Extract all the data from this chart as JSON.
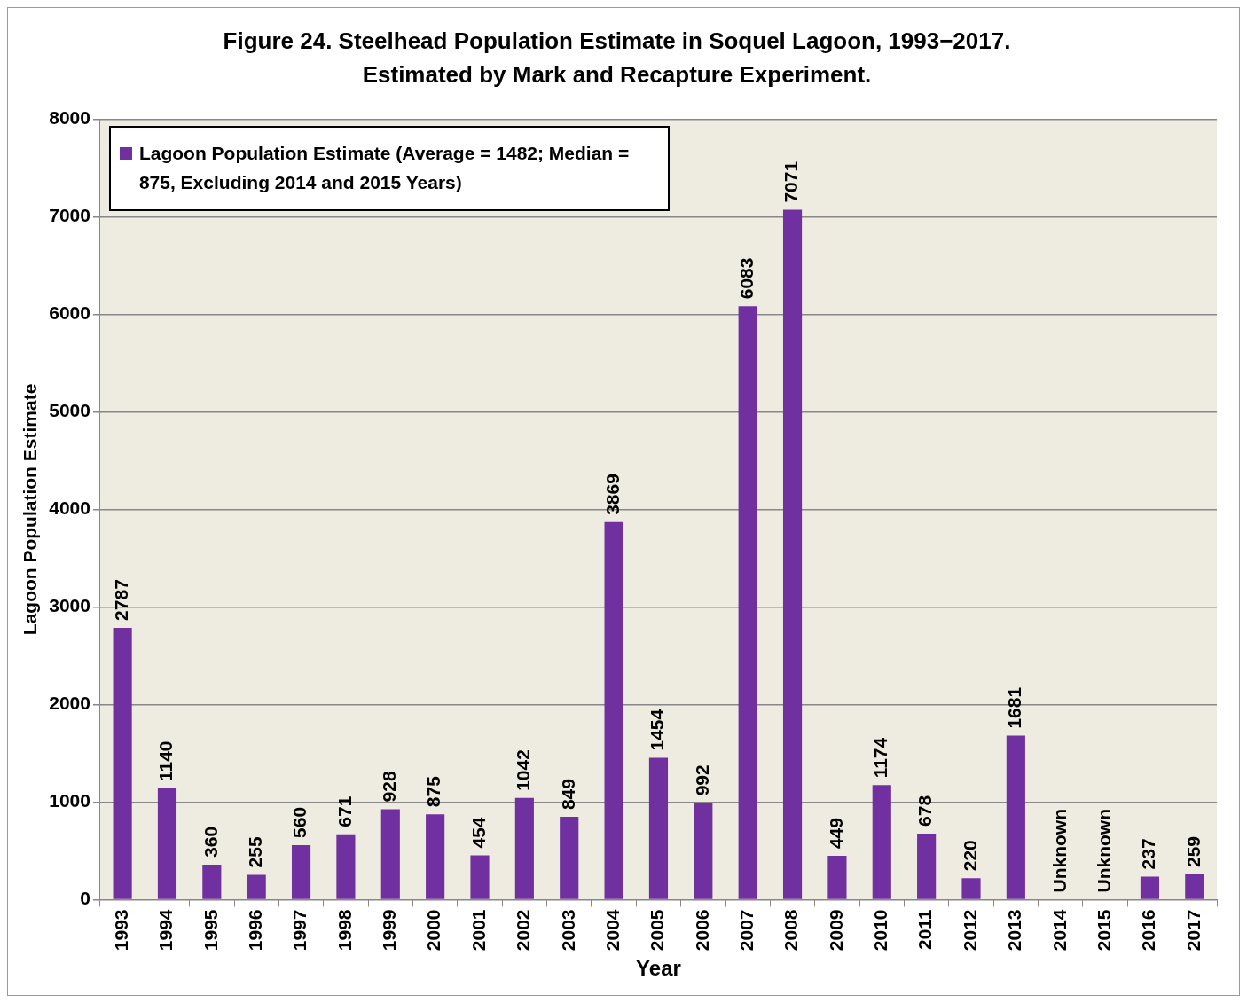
{
  "chart_data": {
    "type": "bar",
    "title": "Figure 24. Steelhead Population Estimate in Soquel Lagoon, 1993−2017.",
    "subtitle": "Estimated by Mark and Recapture Experiment.",
    "xlabel": "Year",
    "ylabel": "Lagoon Population Estimate",
    "categories": [
      "1993",
      "1994",
      "1995",
      "1996",
      "1997",
      "1998",
      "1999",
      "2000",
      "2001",
      "2002",
      "2003",
      "2004",
      "2005",
      "2006",
      "2007",
      "2008",
      "2009",
      "2010",
      "2011",
      "2012",
      "2013",
      "2014",
      "2015",
      "2016",
      "2017"
    ],
    "series": [
      {
        "name": "Lagoon Population Estimate (Average = 1482; Median = 875, Excluding 2014 and 2015 Years)",
        "color": "#7030a0",
        "values": [
          2787,
          1140,
          360,
          255,
          560,
          671,
          928,
          875,
          454,
          1042,
          849,
          3869,
          1454,
          992,
          6083,
          7071,
          449,
          1174,
          678,
          220,
          1681,
          null,
          null,
          237,
          259
        ],
        "value_labels": [
          "2787",
          "1140",
          "360",
          "255",
          "560",
          "671",
          "928",
          "875",
          "454",
          "1042",
          "849",
          "3869",
          "1454",
          "992",
          "6083",
          "7071",
          "449",
          "1174",
          "678",
          "220",
          "1681",
          "Unknown",
          "Unknown",
          "237",
          "259"
        ]
      }
    ],
    "ylim": [
      0,
      8000
    ],
    "yticks": [
      0,
      1000,
      2000,
      3000,
      4000,
      5000,
      6000,
      7000,
      8000
    ],
    "grid": "y",
    "legend": "top left"
  }
}
